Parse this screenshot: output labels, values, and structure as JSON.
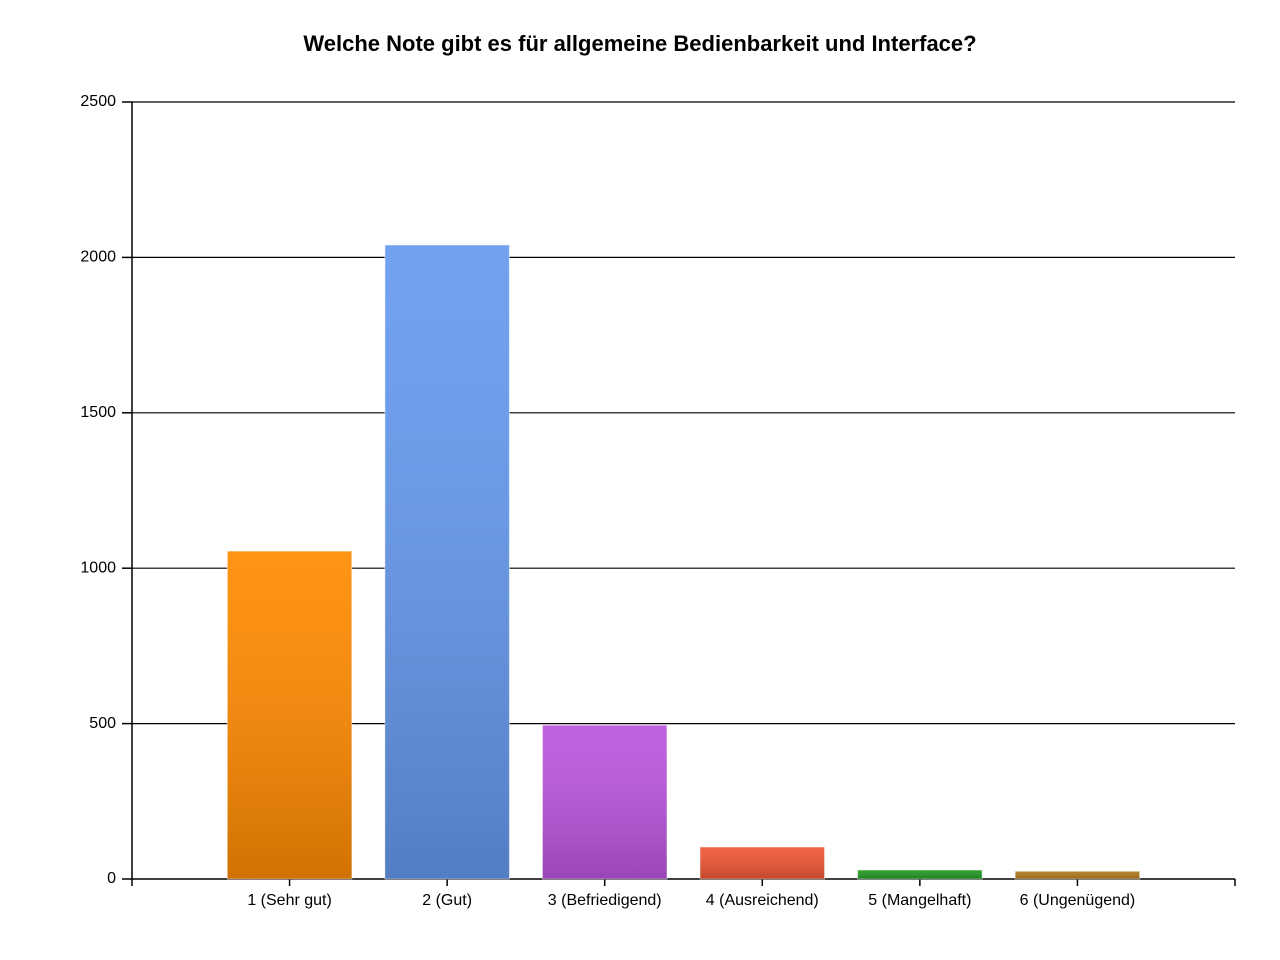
{
  "chart_data": {
    "type": "bar",
    "title": "Welche Note gibt es für allgemeine Bedienbarkeit und Interface?",
    "categories": [
      "1 (Sehr gut)",
      "2 (Gut)",
      "3 (Befriedigend)",
      "4 (Ausreichend)",
      "5 (Mangelhaft)",
      "6 (Ungenügend)"
    ],
    "values": [
      1055,
      2040,
      495,
      103,
      29,
      25
    ],
    "colors": [
      "#ff8a00",
      "#6699ee",
      "#bb55dd",
      "#ee5533",
      "#229922",
      "#b07a1c"
    ],
    "ylim": [
      0,
      2500
    ],
    "yticks": [
      0,
      500,
      1000,
      1500,
      2000,
      2500
    ],
    "grid": true
  }
}
